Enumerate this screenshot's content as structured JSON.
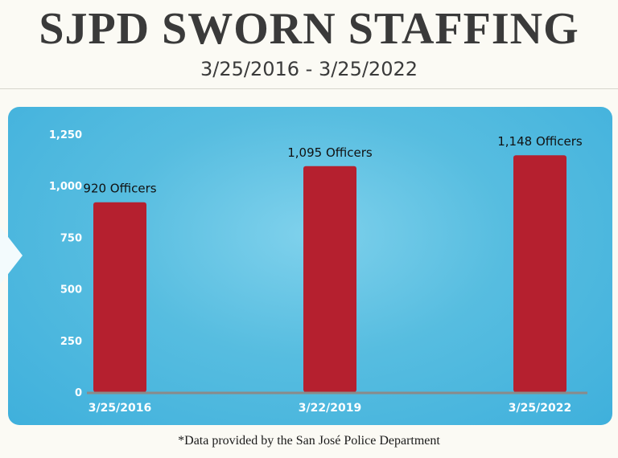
{
  "title": "SJPD SWORN STAFFING",
  "subtitle": "3/25/2016 - 3/25/2022",
  "footnote": "*Data provided by the San José Police Department",
  "colors": {
    "bar": "#b5202f",
    "panel": "#4fb8df",
    "axis_line": "#8a8a8a",
    "label_text": "#111111",
    "tick_text": "#ffffff"
  },
  "chart_data": {
    "type": "bar",
    "categories": [
      "3/25/2016",
      "3/22/2019",
      "3/25/2022"
    ],
    "values": [
      920,
      1095,
      1148
    ],
    "data_labels": [
      "920 Officers",
      "1,095 Officers",
      "1,148 Officers"
    ],
    "yticks": [
      0,
      250,
      500,
      750,
      1000,
      1250
    ],
    "ytick_labels": [
      "0",
      "250",
      "500",
      "750",
      "1,000",
      "1,250"
    ],
    "ylim": [
      0,
      1250
    ],
    "grid": false,
    "legend": "none"
  }
}
